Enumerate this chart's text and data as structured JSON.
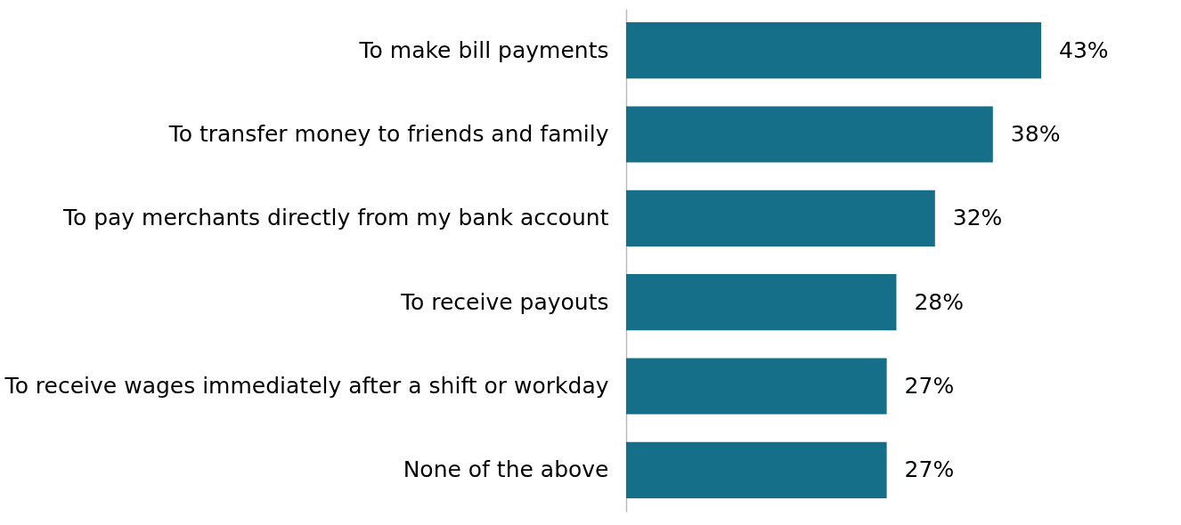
{
  "chart_data": {
    "type": "bar",
    "orientation": "horizontal",
    "categories": [
      "To make bill payments",
      "To transfer money to friends and family",
      "To pay merchants directly from my bank account",
      "To receive payouts",
      "To receive wages immediately after a shift or workday",
      "None of the above"
    ],
    "values": [
      43,
      38,
      32,
      28,
      27,
      27
    ],
    "value_labels": [
      "43%",
      "38%",
      "32%",
      "28%",
      "27%",
      "27%"
    ],
    "color": "#156f89"
  }
}
